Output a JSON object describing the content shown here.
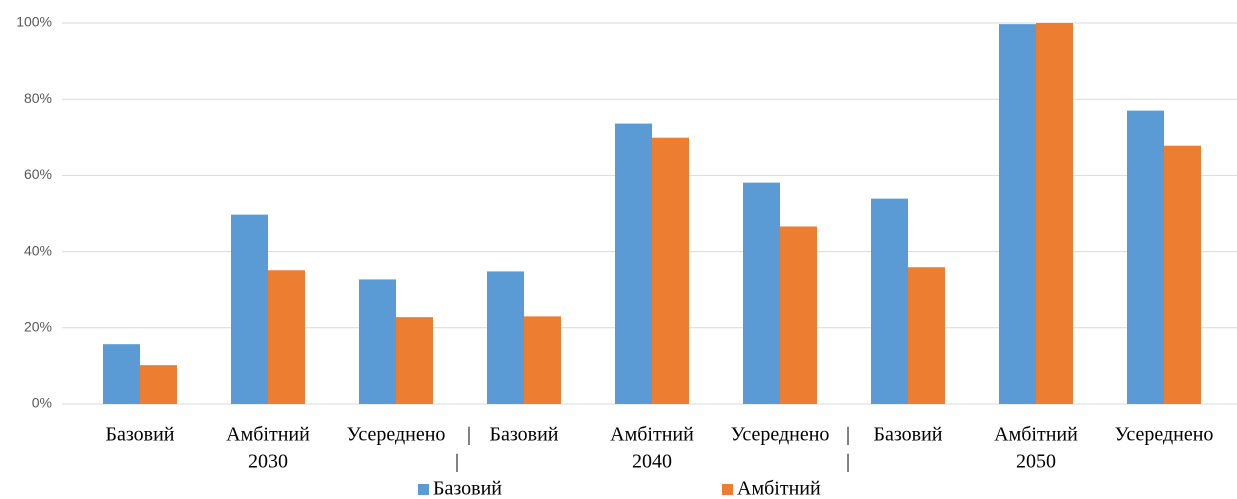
{
  "chart_data": {
    "type": "bar",
    "categories": [
      "Базовий",
      "Амбітний",
      "Усереднено",
      "Базовий",
      "Амбітний",
      "Усереднено",
      "Базовий",
      "Амбітний",
      "Усереднено"
    ],
    "groups": [
      "2030",
      "2040",
      "2050"
    ],
    "series": [
      {
        "name": "Базовий",
        "color": "#5b9bd5",
        "values": [
          15.7,
          49.7,
          32.7,
          34.8,
          73.6,
          58.1,
          53.9,
          99.7,
          77
        ]
      },
      {
        "name": "Амбітний",
        "color": "#ed7d31",
        "values": [
          10.2,
          35.1,
          22.8,
          23,
          69.9,
          46.6,
          35.9,
          100,
          67.8
        ]
      }
    ],
    "ylim": [
      0,
      100
    ],
    "yticks": [
      {
        "value": 0,
        "label": "0%"
      },
      {
        "value": 20,
        "label": "20%"
      },
      {
        "value": 40,
        "label": "40%"
      },
      {
        "value": 60,
        "label": "60%"
      },
      {
        "value": 80,
        "label": "80%"
      },
      {
        "value": 100,
        "label": "100%"
      }
    ],
    "grid": true,
    "legend": "bottom"
  }
}
